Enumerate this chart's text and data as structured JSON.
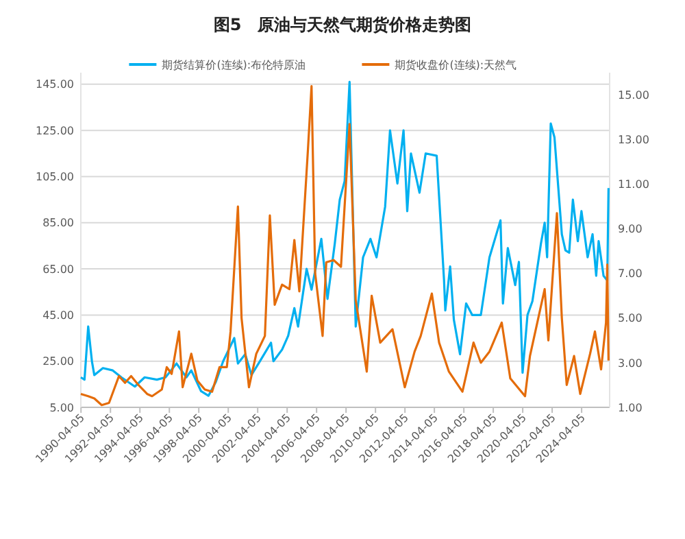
{
  "chart_data": {
    "type": "line",
    "title": "图5　原油与天然气期货价格走势图",
    "legend": "top",
    "grid": "y",
    "marker": "none",
    "line_style": "solid",
    "xlim": [
      "1990-04-01",
      "2026-03-01"
    ],
    "xticks": [
      "1990-04-05",
      "1992-04-05",
      "1994-04-05",
      "1996-04-05",
      "1998-04-05",
      "2000-04-05",
      "2002-04-05",
      "2004-04-05",
      "2006-04-05",
      "2008-04-05",
      "2010-04-05",
      "2012-04-05",
      "2014-04-05",
      "2016-04-05",
      "2018-04-05",
      "2020-04-05",
      "2022-04-05",
      "2024-04-05"
    ],
    "ylim": [
      5,
      150
    ],
    "yticks": [
      {
        "value": 5,
        "label": "5.00"
      },
      {
        "value": 25,
        "label": "25.00"
      },
      {
        "value": 45,
        "label": "45.00"
      },
      {
        "value": 65,
        "label": "65.00"
      },
      {
        "value": 85,
        "label": "85.00"
      },
      {
        "value": 105,
        "label": "105.00"
      },
      {
        "value": 125,
        "label": "125.00"
      },
      {
        "value": 145,
        "label": "145.00"
      }
    ],
    "y2lim": [
      1,
      16
    ],
    "y2ticks": [
      {
        "value": 1,
        "label": "1.00"
      },
      {
        "value": 3,
        "label": "3.00"
      },
      {
        "value": 5,
        "label": "5.00"
      },
      {
        "value": 7,
        "label": "7.00"
      },
      {
        "value": 9,
        "label": "9.00"
      },
      {
        "value": 11,
        "label": "11.00"
      },
      {
        "value": 13,
        "label": "13.00"
      },
      {
        "value": 15,
        "label": "15.00"
      }
    ],
    "series": [
      {
        "name": "期货结算价(连续):布伦特原油",
        "color": "#00b0f0",
        "x": [
          "1990-04",
          "1990-07",
          "1990-10",
          "1991-01",
          "1991-03",
          "1991-10",
          "1992-06",
          "1993-01",
          "1993-12",
          "1994-08",
          "1995-06",
          "1996-01",
          "1996-10",
          "1997-06",
          "1997-10",
          "1998-06",
          "1998-12",
          "1999-06",
          "1999-12",
          "2000-09",
          "2000-12",
          "2001-06",
          "2001-11",
          "2002-06",
          "2003-03",
          "2003-05",
          "2003-12",
          "2004-05",
          "2004-10",
          "2005-01",
          "2005-08",
          "2005-12",
          "2006-08",
          "2007-01",
          "2007-07",
          "2007-11",
          "2008-03",
          "2008-07",
          "2008-12",
          "2009-06",
          "2009-12",
          "2010-05",
          "2010-12",
          "2011-04",
          "2011-10",
          "2012-03",
          "2012-06",
          "2012-09",
          "2013-04",
          "2013-09",
          "2014-06",
          "2014-12",
          "2015-01",
          "2015-05",
          "2015-08",
          "2016-01",
          "2016-06",
          "2016-11",
          "2017-06",
          "2018-01",
          "2018-10",
          "2018-12",
          "2019-04",
          "2019-10",
          "2020-01",
          "2020-04",
          "2020-08",
          "2020-12",
          "2021-07",
          "2021-10",
          "2021-12",
          "2022-03",
          "2022-06",
          "2022-12",
          "2023-03",
          "2023-06",
          "2023-09",
          "2024-01",
          "2024-04",
          "2024-09",
          "2025-01",
          "2025-04",
          "2025-06",
          "2025-10",
          "2026-01",
          "2026-02"
        ],
        "values": [
          18,
          17,
          40,
          25,
          19,
          22,
          21,
          18,
          14,
          18,
          17,
          18,
          24,
          18,
          21,
          12,
          10,
          16,
          25,
          35,
          24,
          28,
          19,
          25,
          33,
          25,
          30,
          36,
          48,
          40,
          65,
          56,
          78,
          52,
          76,
          95,
          103,
          146,
          40,
          70,
          78,
          70,
          92,
          125,
          102,
          125,
          90,
          115,
          98,
          115,
          114,
          60,
          47,
          66,
          43,
          28,
          50,
          45,
          45,
          70,
          86,
          50,
          74,
          58,
          68,
          20,
          45,
          51,
          76,
          85,
          70,
          128,
          122,
          80,
          73,
          72,
          95,
          77,
          90,
          70,
          80,
          62,
          77,
          62,
          60,
          100
        ]
      },
      {
        "name": "期货收盘价(连续):天然气",
        "color": "#e46c0a",
        "axis": "y2",
        "x": [
          "1990-04",
          "1990-10",
          "1991-03",
          "1991-09",
          "1992-03",
          "1992-11",
          "1993-04",
          "1993-09",
          "1994-03",
          "1994-10",
          "1995-02",
          "1995-10",
          "1996-02",
          "1996-06",
          "1996-12",
          "1997-03",
          "1997-10",
          "1998-03",
          "1998-09",
          "1999-03",
          "1999-09",
          "2000-03",
          "2000-06",
          "2000-12",
          "2001-03",
          "2001-09",
          "2002-03",
          "2002-10",
          "2003-02",
          "2003-06",
          "2003-12",
          "2004-06",
          "2004-10",
          "2005-02",
          "2005-09",
          "2005-12",
          "2006-03",
          "2006-09",
          "2006-12",
          "2007-06",
          "2007-12",
          "2008-07",
          "2008-12",
          "2009-09",
          "2010-01",
          "2010-08",
          "2011-06",
          "2012-04",
          "2012-12",
          "2013-05",
          "2014-02",
          "2014-08",
          "2015-04",
          "2016-03",
          "2016-12",
          "2017-06",
          "2018-01",
          "2018-11",
          "2019-06",
          "2020-06",
          "2020-10",
          "2021-10",
          "2022-01",
          "2022-08",
          "2022-12",
          "2023-04",
          "2023-10",
          "2024-03",
          "2024-11",
          "2025-03",
          "2025-08",
          "2025-12",
          "2026-01",
          "2026-02"
        ],
        "values": [
          1.6,
          1.5,
          1.4,
          1.1,
          1.2,
          2.4,
          2.1,
          2.4,
          2.0,
          1.6,
          1.5,
          1.8,
          2.8,
          2.5,
          4.4,
          1.9,
          3.4,
          2.2,
          1.8,
          1.7,
          2.8,
          2.8,
          4.4,
          10.0,
          5.0,
          1.9,
          3.4,
          4.2,
          9.6,
          5.6,
          6.5,
          6.3,
          8.5,
          6.2,
          12.5,
          15.4,
          7.0,
          4.2,
          7.5,
          7.6,
          7.3,
          13.7,
          5.8,
          2.6,
          6.0,
          3.9,
          4.5,
          1.9,
          3.5,
          4.2,
          6.1,
          3.9,
          2.6,
          1.7,
          3.9,
          3.0,
          3.5,
          4.8,
          2.3,
          1.5,
          3.3,
          6.3,
          4.0,
          9.7,
          5.0,
          2.0,
          3.3,
          1.6,
          3.4,
          4.4,
          2.7,
          4.8,
          7.4,
          3.1
        ]
      }
    ]
  }
}
